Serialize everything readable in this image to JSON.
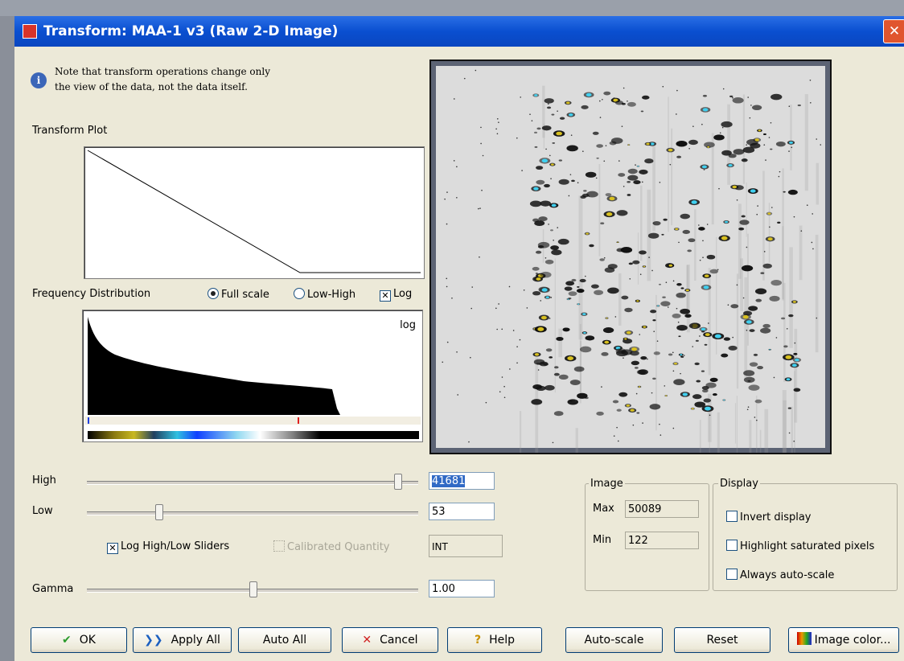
{
  "window": {
    "title": "Transform: MAA-1 v3 (Raw 2-D Image)"
  },
  "note": [
    "Note that transform operations change only",
    "the view of the data, not the data itself."
  ],
  "transform_plot": {
    "label": "Transform Plot"
  },
  "frequency_distribution": {
    "label": "Frequency Distribution",
    "options": [
      {
        "label": "Full scale",
        "selected": true
      },
      {
        "label": "Low-High",
        "selected": false
      }
    ],
    "log": {
      "label": "Log",
      "checked": true
    },
    "scale_label": "log"
  },
  "sliders": {
    "high": {
      "label": "High",
      "value": "41681"
    },
    "low": {
      "label": "Low",
      "value": "53"
    },
    "gamma": {
      "label": "Gamma",
      "value": "1.00"
    }
  },
  "log_sliders": {
    "label": "Log High/Low Sliders",
    "checked": true
  },
  "calibrated": {
    "label": "Calibrated Quantity",
    "checked": false
  },
  "units": "INT",
  "image": {
    "label": "Image",
    "max_label": "Max",
    "max": "50089",
    "min_label": "Min",
    "min": "122"
  },
  "display": {
    "label": "Display",
    "options": [
      {
        "label": "Invert display",
        "checked": false
      },
      {
        "label": "Highlight saturated pixels",
        "checked": false
      },
      {
        "label": "Always auto-scale",
        "checked": false
      }
    ]
  },
  "buttons": [
    "OK",
    "Apply All",
    "Auto All",
    "Cancel",
    "Help",
    "Auto-scale",
    "Reset",
    "Image color..."
  ]
}
